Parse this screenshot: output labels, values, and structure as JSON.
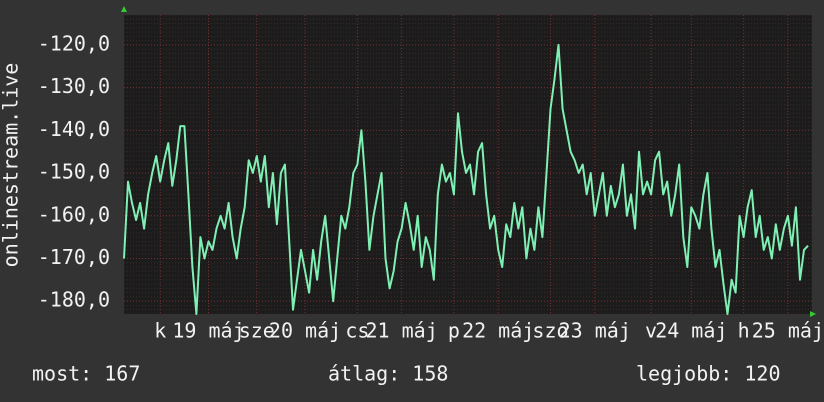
{
  "chart_data": {
    "type": "line",
    "y_label": "onlinestream.live",
    "color": "#7ff0b4",
    "grid": true,
    "ylim": [
      -183,
      -113
    ],
    "yticks": [
      {
        "value": -120,
        "label": "-120,0"
      },
      {
        "value": -130,
        "label": "-130,0"
      },
      {
        "value": -140,
        "label": "-140,0"
      },
      {
        "value": -150,
        "label": "-150,0"
      },
      {
        "value": -160,
        "label": "-160,0"
      },
      {
        "value": -170,
        "label": "-170,0"
      },
      {
        "value": -180,
        "label": "-180,0"
      }
    ],
    "xlim": [
      0,
      170
    ],
    "xticks": [
      {
        "value": 9,
        "label": "k"
      },
      {
        "value": 21,
        "label": "19 máj"
      },
      {
        "value": 33,
        "label": "sze"
      },
      {
        "value": 45,
        "label": "20 máj"
      },
      {
        "value": 58,
        "label": "cs"
      },
      {
        "value": 69,
        "label": "21 máj"
      },
      {
        "value": 82,
        "label": "p"
      },
      {
        "value": 93,
        "label": "22 máj"
      },
      {
        "value": 106,
        "label": "szo"
      },
      {
        "value": 117,
        "label": "23 máj"
      },
      {
        "value": 131,
        "label": "v"
      },
      {
        "value": 141,
        "label": "24 máj"
      },
      {
        "value": 154,
        "label": "h"
      },
      {
        "value": 165,
        "label": "25 máj"
      }
    ],
    "values": [
      -170,
      -152,
      -157,
      -161,
      -157,
      -163,
      -155,
      -150,
      -146,
      -152,
      -147,
      -143,
      -153,
      -147,
      -139,
      -139,
      -155,
      -172,
      -183,
      -165,
      -170,
      -166,
      -168,
      -163,
      -160,
      -163,
      -157,
      -165,
      -170,
      -163,
      -158,
      -147,
      -150,
      -146,
      -152,
      -146,
      -158,
      -150,
      -162,
      -150,
      -148,
      -165,
      -182,
      -175,
      -168,
      -173,
      -178,
      -168,
      -175,
      -166,
      -160,
      -170,
      -180,
      -170,
      -160,
      -163,
      -158,
      -150,
      -148,
      -140,
      -152,
      -168,
      -160,
      -155,
      -150,
      -170,
      -177,
      -173,
      -166,
      -163,
      -157,
      -162,
      -168,
      -160,
      -172,
      -165,
      -168,
      -175,
      -155,
      -148,
      -152,
      -150,
      -155,
      -136,
      -145,
      -150,
      -148,
      -155,
      -145,
      -143,
      -155,
      -163,
      -160,
      -168,
      -172,
      -162,
      -165,
      -157,
      -163,
      -158,
      -170,
      -163,
      -168,
      -158,
      -165,
      -150,
      -135,
      -128,
      -120,
      -135,
      -140,
      -145,
      -147,
      -150,
      -148,
      -155,
      -150,
      -160,
      -155,
      -150,
      -160,
      -153,
      -158,
      -155,
      -148,
      -160,
      -155,
      -163,
      -145,
      -155,
      -152,
      -155,
      -147,
      -145,
      -155,
      -152,
      -160,
      -155,
      -148,
      -165,
      -172,
      -158,
      -160,
      -163,
      -155,
      -150,
      -163,
      -172,
      -168,
      -176,
      -183,
      -175,
      -178,
      -160,
      -165,
      -158,
      -154,
      -165,
      -160,
      -168,
      -165,
      -170,
      -162,
      -168,
      -163,
      -160,
      -167,
      -158,
      -175,
      -168,
      -167
    ],
    "stats": [
      "most: 167",
      "átlag: 158",
      "legjobb: 120"
    ]
  }
}
